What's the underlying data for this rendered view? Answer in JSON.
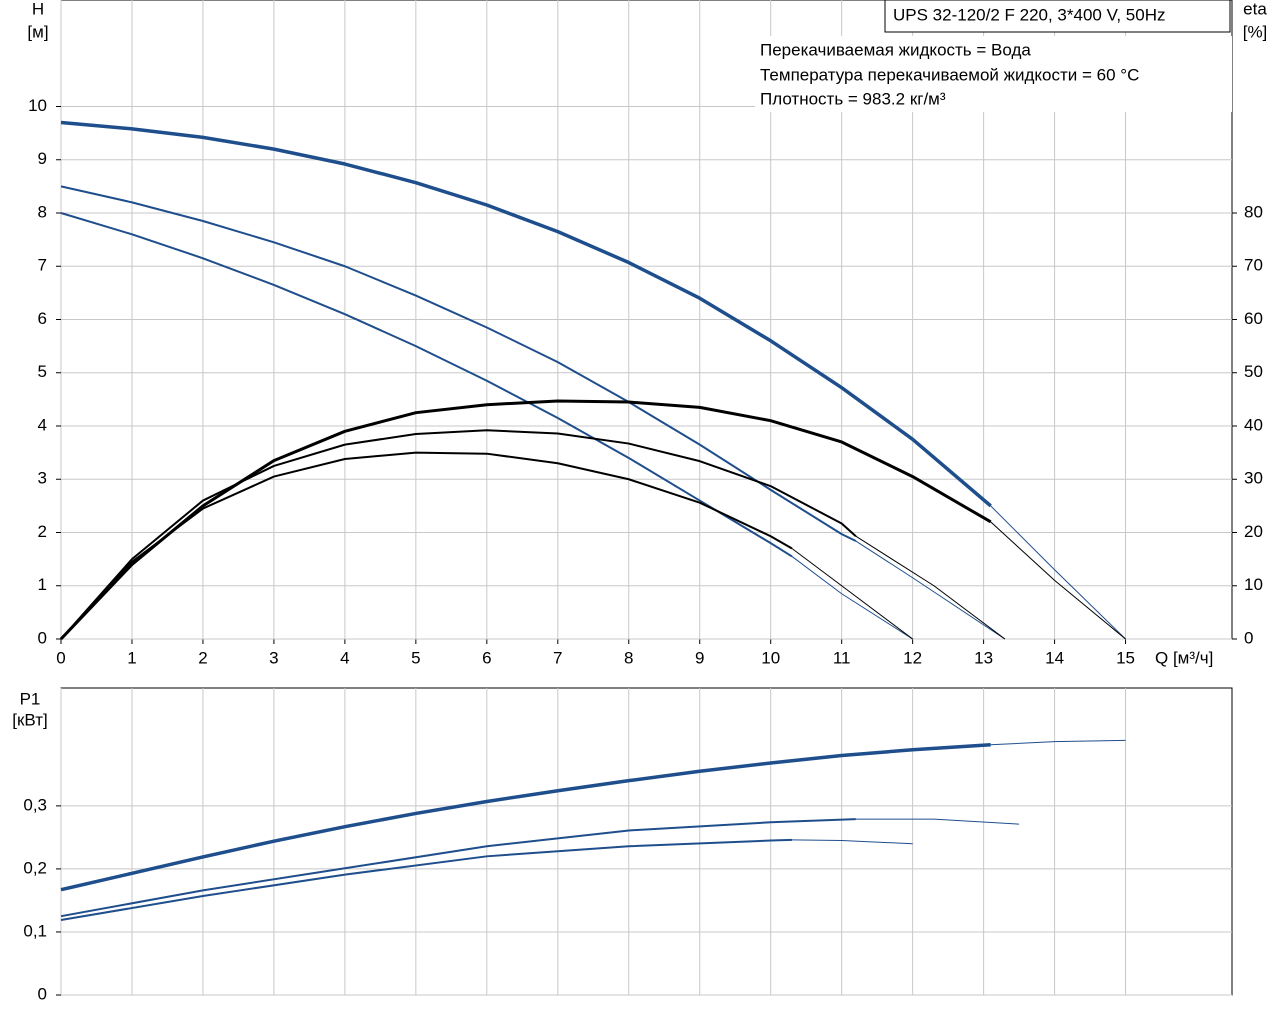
{
  "chart_data": [
    {
      "type": "line",
      "info_box": "UPS 32-120/2 F 220, 3*400 V, 50Hz",
      "info_lines": [
        "Перекачиваемая жидкость = Вода",
        "Температура перекачиваемой жидкости = 60 °C",
        "Плотность = 983.2 кг/м³"
      ],
      "ylabel": [
        "H",
        "[м]"
      ],
      "y2label": [
        "eta",
        "[%]"
      ],
      "xlabel": "Q [м³/ч]",
      "xlim": [
        0,
        16.5
      ],
      "xticks": [
        0,
        1,
        2,
        3,
        4,
        5,
        6,
        7,
        8,
        9,
        10,
        11,
        12,
        13,
        14,
        15
      ],
      "ylim": [
        0,
        12
      ],
      "yticks": [
        0,
        1,
        2,
        3,
        4,
        5,
        6,
        7,
        8,
        9,
        10
      ],
      "y2lim": [
        0,
        120
      ],
      "y2ticks": [
        0,
        10,
        20,
        30,
        40,
        50,
        60,
        70,
        80
      ],
      "grid": true,
      "series": [
        {
          "color": "#1f4e8c",
          "width": 3.5,
          "x": [
            0,
            1,
            2,
            3,
            4,
            5,
            6,
            7,
            8,
            9,
            10,
            11,
            12,
            13.1
          ],
          "values": [
            9.7,
            9.58,
            9.42,
            9.2,
            8.92,
            8.57,
            8.15,
            7.65,
            7.07,
            6.4,
            5.6,
            4.72,
            3.75,
            2.5
          ]
        },
        {
          "color": "#1f4e8c",
          "width": 1,
          "x": [
            13.1,
            14,
            15
          ],
          "values": [
            2.5,
            1.3,
            0
          ]
        },
        {
          "color": "#1f4e8c",
          "width": 2,
          "x": [
            0,
            1,
            2,
            3,
            4,
            5,
            6,
            7,
            8,
            9,
            10,
            11,
            11.2
          ],
          "values": [
            8.5,
            8.2,
            7.85,
            7.45,
            7.0,
            6.45,
            5.85,
            5.2,
            4.45,
            3.65,
            2.8,
            1.97,
            1.84
          ]
        },
        {
          "color": "#1f4e8c",
          "width": 1,
          "x": [
            11.2,
            12,
            13.3
          ],
          "values": [
            1.84,
            1.15,
            0
          ]
        },
        {
          "color": "#1f4e8c",
          "width": 2,
          "x": [
            0,
            1,
            2,
            3,
            4,
            5,
            6,
            7,
            8,
            9,
            10,
            10.3
          ],
          "values": [
            8.0,
            7.6,
            7.15,
            6.65,
            6.1,
            5.5,
            4.85,
            4.15,
            3.4,
            2.6,
            1.8,
            1.55
          ]
        },
        {
          "color": "#1f4e8c",
          "width": 1,
          "x": [
            10.3,
            11,
            12
          ],
          "values": [
            1.55,
            0.85,
            0
          ]
        },
        {
          "color": "#000000",
          "width": 3,
          "axis": "y2",
          "x": [
            0,
            1,
            2,
            3,
            4,
            5,
            6,
            7,
            8,
            9,
            10,
            11,
            12,
            13.1
          ],
          "values": [
            0,
            14,
            25,
            33.5,
            39,
            42.5,
            44,
            44.7,
            44.5,
            43.5,
            41,
            37,
            30.5,
            22
          ]
        },
        {
          "color": "#000000",
          "width": 1,
          "axis": "y2",
          "x": [
            13.1,
            14,
            15
          ],
          "values": [
            22,
            11,
            0
          ]
        },
        {
          "color": "#000000",
          "width": 2,
          "axis": "y2",
          "x": [
            0,
            1,
            2,
            3,
            4,
            5,
            6,
            7,
            8,
            9,
            10,
            11,
            11.2
          ],
          "values": [
            0,
            15,
            26,
            32.5,
            36.5,
            38.5,
            39.2,
            38.6,
            36.7,
            33.4,
            28.7,
            21.7,
            19.3
          ]
        },
        {
          "color": "#000000",
          "width": 1,
          "axis": "y2",
          "x": [
            11.2,
            12.3,
            13.3
          ],
          "values": [
            19.3,
            10,
            0
          ]
        },
        {
          "color": "#000000",
          "width": 2,
          "axis": "y2",
          "x": [
            0,
            1,
            2,
            3,
            4,
            5,
            6,
            7,
            8,
            9,
            10,
            10.3
          ],
          "values": [
            0,
            14.5,
            24.5,
            30.5,
            33.8,
            35,
            34.8,
            33,
            30,
            25.6,
            19.3,
            17
          ]
        },
        {
          "color": "#000000",
          "width": 1,
          "axis": "y2",
          "x": [
            10.3,
            11,
            12
          ],
          "values": [
            17,
            10,
            0
          ]
        }
      ]
    },
    {
      "type": "line",
      "ylabel": [
        "P1",
        "[кВт]"
      ],
      "xlim": [
        0,
        16.5
      ],
      "ylim": [
        0,
        0.487
      ],
      "yticks": [
        0,
        {
          "value": 0.1,
          "label": "0,1"
        },
        {
          "value": 0.2,
          "label": "0,2"
        },
        {
          "value": 0.3,
          "label": "0,3"
        }
      ],
      "grid": true,
      "series": [
        {
          "color": "#1f4e8c",
          "width": 3.5,
          "x": [
            0,
            1,
            2,
            3,
            4,
            5,
            6,
            7,
            8,
            9,
            10,
            11,
            12,
            13.1
          ],
          "values": [
            0.167,
            0.193,
            0.219,
            0.244,
            0.267,
            0.288,
            0.307,
            0.324,
            0.34,
            0.355,
            0.368,
            0.38,
            0.389,
            0.397
          ]
        },
        {
          "color": "#1f4e8c",
          "width": 1,
          "x": [
            13.1,
            14,
            15
          ],
          "values": [
            0.397,
            0.402,
            0.404
          ]
        },
        {
          "color": "#1f4e8c",
          "width": 2,
          "x": [
            0,
            2,
            4,
            6,
            8,
            10,
            11.2
          ],
          "values": [
            0.125,
            0.166,
            0.201,
            0.236,
            0.261,
            0.274,
            0.279
          ]
        },
        {
          "color": "#1f4e8c",
          "width": 1,
          "x": [
            11.2,
            12.3,
            13.5
          ],
          "values": [
            0.279,
            0.279,
            0.271
          ]
        },
        {
          "color": "#1f4e8c",
          "width": 2,
          "x": [
            0,
            2,
            4,
            6,
            8,
            10,
            10.3
          ],
          "values": [
            0.119,
            0.157,
            0.191,
            0.22,
            0.236,
            0.245,
            0.246
          ]
        },
        {
          "color": "#1f4e8c",
          "width": 1,
          "x": [
            10.3,
            11,
            12
          ],
          "values": [
            0.246,
            0.245,
            0.24
          ]
        }
      ]
    }
  ]
}
